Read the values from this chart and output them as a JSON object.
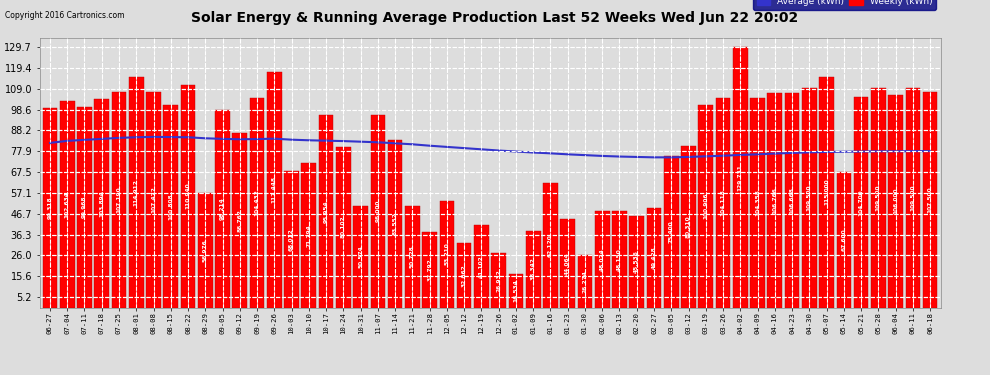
{
  "title": "Solar Energy & Running Average Production Last 52 Weeks Wed Jun 22 20:02",
  "copyright": "Copyright 2016 Cartronics.com",
  "bar_color": "#FF0000",
  "avg_line_color": "#3333CC",
  "background_color": "#DDDDDD",
  "plot_background": "#DDDDDD",
  "yticks": [
    5.2,
    15.6,
    26.0,
    36.3,
    46.7,
    57.1,
    67.5,
    77.9,
    88.2,
    98.6,
    109.0,
    119.4,
    129.7
  ],
  "legend_avg_color": "#3333CC",
  "legend_bar_color": "#FF0000",
  "categories": [
    "06-27",
    "07-04",
    "07-11",
    "07-18",
    "07-25",
    "08-01",
    "08-08",
    "08-15",
    "08-22",
    "08-29",
    "09-05",
    "09-12",
    "09-19",
    "09-26",
    "10-03",
    "10-10",
    "10-17",
    "10-24",
    "10-31",
    "11-07",
    "11-14",
    "11-21",
    "11-28",
    "12-05",
    "12-12",
    "12-19",
    "12-26",
    "01-02",
    "01-09",
    "01-16",
    "01-23",
    "01-30",
    "02-06",
    "02-13",
    "02-20",
    "02-27",
    "03-05",
    "03-12",
    "03-19",
    "03-26",
    "04-02",
    "04-09",
    "04-16",
    "04-23",
    "04-30",
    "05-07",
    "05-14",
    "05-21",
    "05-28",
    "06-04",
    "06-11",
    "06-18"
  ],
  "weekly_vals": [
    99.318,
    102.634,
    99.968,
    103.894,
    107.19,
    114.912,
    107.472,
    100.808,
    110.94,
    56.976,
    98.214,
    86.762,
    104.432,
    117.448,
    68.012,
    71.794,
    95.954,
    80.102,
    50.574,
    96.0,
    83.552,
    50.728,
    37.792,
    53.21,
    32.062,
    41.102,
    26.932,
    16.534,
    38.342,
    62.12,
    44.064,
    26.274,
    48.024,
    48.15,
    45.536,
    49.428,
    75.4,
    80.31,
    100.906,
    104.118,
    129.731,
    104.358,
    106.766,
    106.668,
    109.5,
    115.0,
    67.6,
    104.7,
    109.5,
    106.0,
    109.5,
    107.5
  ],
  "avg_vals": [
    82.0,
    83.0,
    83.5,
    84.0,
    84.5,
    84.8,
    85.0,
    84.9,
    84.8,
    84.3,
    84.0,
    83.8,
    83.9,
    84.1,
    83.6,
    83.3,
    83.1,
    82.9,
    82.6,
    82.3,
    81.8,
    81.3,
    80.6,
    80.0,
    79.4,
    78.8,
    78.2,
    77.7,
    77.2,
    76.8,
    76.3,
    75.9,
    75.5,
    75.2,
    75.0,
    74.8,
    74.8,
    75.0,
    75.3,
    75.6,
    76.0,
    76.3,
    76.7,
    77.0,
    77.3,
    77.5,
    77.6,
    77.7,
    77.8,
    77.8,
    77.9,
    77.9
  ],
  "ylim": [
    0,
    134.5
  ],
  "bar_text_fontsize": 4.2,
  "title_fontsize": 10.0
}
